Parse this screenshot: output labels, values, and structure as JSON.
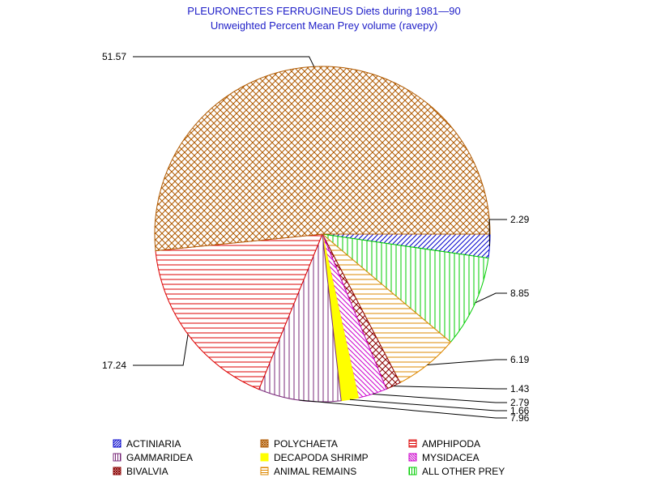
{
  "chart_data": {
    "type": "pie",
    "title": "PLEURONECTES FERRUGINEUS Diets during 1981—90",
    "subtitle": "Unweighted Percent Mean Prey volume (ravepy)",
    "slices": [
      {
        "name": "ACTINIARIA",
        "value": 2.29,
        "label": "2.29",
        "color": "#0000cc",
        "pattern": "diag-up"
      },
      {
        "name": "ALL OTHER PREY",
        "value": 8.85,
        "label": "8.85",
        "color": "#00cc00",
        "pattern": "vert"
      },
      {
        "name": "ANIMAL REMAINS",
        "value": 6.19,
        "label": "6.19",
        "color": "#dd8800",
        "pattern": "horiz"
      },
      {
        "name": "BIVALVIA",
        "value": 1.43,
        "label": "1.43",
        "color": "#8b0000",
        "pattern": "cross"
      },
      {
        "name": "MYSIDACEA",
        "value": 2.79,
        "label": "2.79",
        "color": "#cc00cc",
        "pattern": "diag-down"
      },
      {
        "name": "DECAPODA SHRIMP",
        "value": 1.66,
        "label": "1.66",
        "color": "#ffff00",
        "pattern": "solid"
      },
      {
        "name": "GAMMARIDEA",
        "value": 7.96,
        "label": "7.96",
        "color": "#7a2a7a",
        "pattern": "vert"
      },
      {
        "name": "AMPHIPODA",
        "value": 17.24,
        "label": "17.24",
        "color": "#dd0000",
        "pattern": "horiz"
      },
      {
        "name": "POLYCHAETA",
        "value": 51.57,
        "label": "51.57",
        "color": "#b05a00",
        "pattern": "cross"
      }
    ],
    "legend": [
      {
        "name": "ACTINIARIA",
        "color": "#0000cc",
        "pattern": "diag-up"
      },
      {
        "name": "POLYCHAETA",
        "color": "#b05a00",
        "pattern": "cross"
      },
      {
        "name": "AMPHIPODA",
        "color": "#dd0000",
        "pattern": "horiz"
      },
      {
        "name": "GAMMARIDEA",
        "color": "#7a2a7a",
        "pattern": "vert"
      },
      {
        "name": "DECAPODA SHRIMP",
        "color": "#ffff00",
        "pattern": "solid"
      },
      {
        "name": "MYSIDACEA",
        "color": "#cc00cc",
        "pattern": "diag-down"
      },
      {
        "name": "BIVALVIA",
        "color": "#8b0000",
        "pattern": "cross"
      },
      {
        "name": "ANIMAL REMAINS",
        "color": "#dd8800",
        "pattern": "horiz"
      },
      {
        "name": "ALL OTHER PREY",
        "color": "#00cc00",
        "pattern": "vert"
      }
    ],
    "legend_placement": "bottom"
  }
}
